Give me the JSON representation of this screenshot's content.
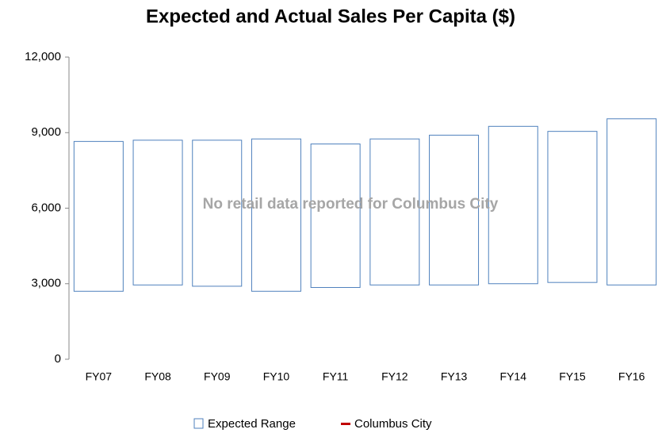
{
  "chart_data": {
    "type": "floating_bar",
    "title": "Expected and Actual Sales Per Capita ($)",
    "annotation": "No retail data reported for Columbus City",
    "categories": [
      "FY07",
      "FY08",
      "FY09",
      "FY10",
      "FY11",
      "FY12",
      "FY13",
      "FY14",
      "FY15",
      "FY16"
    ],
    "series": [
      {
        "name": "Expected Range",
        "color": "#4f81bd",
        "low": [
          2700,
          2950,
          2900,
          2700,
          2850,
          2950,
          2950,
          3000,
          3050,
          2950
        ],
        "high": [
          8650,
          8700,
          8700,
          8750,
          8550,
          8750,
          8900,
          9250,
          9050,
          9550
        ]
      },
      {
        "name": "Columbus City",
        "color": "#c00000",
        "values": [
          null,
          null,
          null,
          null,
          null,
          null,
          null,
          null,
          null,
          null
        ]
      }
    ],
    "ylim": [
      0,
      12000
    ],
    "yticks": [
      0,
      {
        "value": 3000,
        "label": "3,000"
      },
      {
        "value": 6000,
        "label": "6,000"
      },
      {
        "value": 9000,
        "label": "9,000"
      },
      {
        "value": 12000,
        "label": "12,000"
      }
    ],
    "grid": false
  }
}
